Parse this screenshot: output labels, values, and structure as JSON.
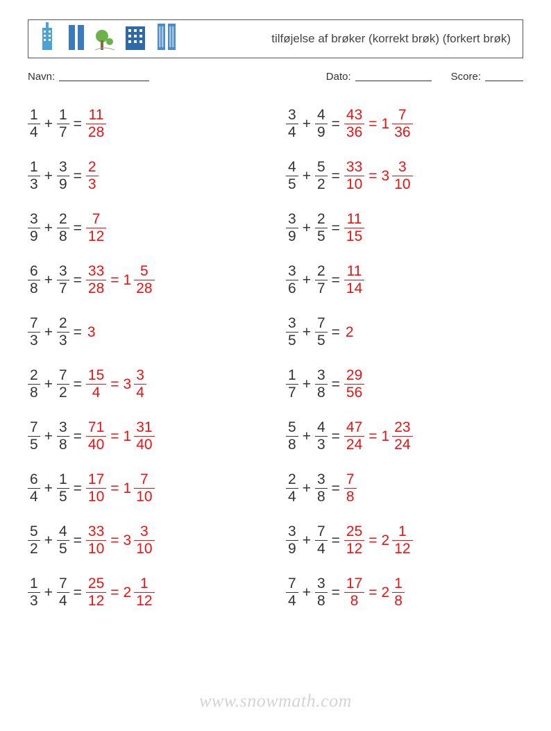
{
  "header": {
    "title": "tilføjelse af brøker (korrekt brøk) (forkert brøk)",
    "buildings": [
      {
        "c": "#4aa3d4"
      },
      {
        "c": "#3a7bbf"
      },
      {
        "c": "#6cb24a"
      },
      {
        "c": "#2e6aa8"
      },
      {
        "c": "#4a8cc7"
      }
    ]
  },
  "fields": {
    "name_label": "Navn:",
    "date_label": "Dato:",
    "score_label": "Score:"
  },
  "answer_color": "#ee1111",
  "text_color": "#333333",
  "rows_left": [
    {
      "a": {
        "n": "1",
        "d": "4"
      },
      "b": {
        "n": "1",
        "d": "7"
      },
      "ans": [
        {
          "type": "frac",
          "n": "11",
          "d": "28"
        }
      ]
    },
    {
      "a": {
        "n": "1",
        "d": "3"
      },
      "b": {
        "n": "3",
        "d": "9"
      },
      "ans": [
        {
          "type": "frac",
          "n": "2",
          "d": "3"
        }
      ]
    },
    {
      "a": {
        "n": "3",
        "d": "9"
      },
      "b": {
        "n": "2",
        "d": "8"
      },
      "ans": [
        {
          "type": "frac",
          "n": "7",
          "d": "12"
        }
      ]
    },
    {
      "a": {
        "n": "6",
        "d": "8"
      },
      "b": {
        "n": "3",
        "d": "7"
      },
      "ans": [
        {
          "type": "frac",
          "n": "33",
          "d": "28"
        },
        {
          "type": "mixed",
          "w": "1",
          "n": "5",
          "d": "28"
        }
      ]
    },
    {
      "a": {
        "n": "7",
        "d": "3"
      },
      "b": {
        "n": "2",
        "d": "3"
      },
      "ans": [
        {
          "type": "int",
          "v": "3"
        }
      ]
    },
    {
      "a": {
        "n": "2",
        "d": "8"
      },
      "b": {
        "n": "7",
        "d": "2"
      },
      "ans": [
        {
          "type": "frac",
          "n": "15",
          "d": "4"
        },
        {
          "type": "mixed",
          "w": "3",
          "n": "3",
          "d": "4"
        }
      ]
    },
    {
      "a": {
        "n": "7",
        "d": "5"
      },
      "b": {
        "n": "3",
        "d": "8"
      },
      "ans": [
        {
          "type": "frac",
          "n": "71",
          "d": "40"
        },
        {
          "type": "mixed",
          "w": "1",
          "n": "31",
          "d": "40"
        }
      ]
    },
    {
      "a": {
        "n": "6",
        "d": "4"
      },
      "b": {
        "n": "1",
        "d": "5"
      },
      "ans": [
        {
          "type": "frac",
          "n": "17",
          "d": "10"
        },
        {
          "type": "mixed",
          "w": "1",
          "n": "7",
          "d": "10"
        }
      ]
    },
    {
      "a": {
        "n": "5",
        "d": "2"
      },
      "b": {
        "n": "4",
        "d": "5"
      },
      "ans": [
        {
          "type": "frac",
          "n": "33",
          "d": "10"
        },
        {
          "type": "mixed",
          "w": "3",
          "n": "3",
          "d": "10"
        }
      ]
    },
    {
      "a": {
        "n": "1",
        "d": "3"
      },
      "b": {
        "n": "7",
        "d": "4"
      },
      "ans": [
        {
          "type": "frac",
          "n": "25",
          "d": "12"
        },
        {
          "type": "mixed",
          "w": "2",
          "n": "1",
          "d": "12"
        }
      ]
    }
  ],
  "rows_right": [
    {
      "a": {
        "n": "3",
        "d": "4"
      },
      "b": {
        "n": "4",
        "d": "9"
      },
      "ans": [
        {
          "type": "frac",
          "n": "43",
          "d": "36"
        },
        {
          "type": "mixed",
          "w": "1",
          "n": "7",
          "d": "36"
        }
      ]
    },
    {
      "a": {
        "n": "4",
        "d": "5"
      },
      "b": {
        "n": "5",
        "d": "2"
      },
      "ans": [
        {
          "type": "frac",
          "n": "33",
          "d": "10"
        },
        {
          "type": "mixed",
          "w": "3",
          "n": "3",
          "d": "10"
        }
      ]
    },
    {
      "a": {
        "n": "3",
        "d": "9"
      },
      "b": {
        "n": "2",
        "d": "5"
      },
      "ans": [
        {
          "type": "frac",
          "n": "11",
          "d": "15"
        }
      ]
    },
    {
      "a": {
        "n": "3",
        "d": "6"
      },
      "b": {
        "n": "2",
        "d": "7"
      },
      "ans": [
        {
          "type": "frac",
          "n": "11",
          "d": "14"
        }
      ]
    },
    {
      "a": {
        "n": "3",
        "d": "5"
      },
      "b": {
        "n": "7",
        "d": "5"
      },
      "ans": [
        {
          "type": "int",
          "v": "2"
        }
      ]
    },
    {
      "a": {
        "n": "1",
        "d": "7"
      },
      "b": {
        "n": "3",
        "d": "8"
      },
      "ans": [
        {
          "type": "frac",
          "n": "29",
          "d": "56"
        }
      ]
    },
    {
      "a": {
        "n": "5",
        "d": "8"
      },
      "b": {
        "n": "4",
        "d": "3"
      },
      "ans": [
        {
          "type": "frac",
          "n": "47",
          "d": "24"
        },
        {
          "type": "mixed",
          "w": "1",
          "n": "23",
          "d": "24"
        }
      ]
    },
    {
      "a": {
        "n": "2",
        "d": "4"
      },
      "b": {
        "n": "3",
        "d": "8"
      },
      "ans": [
        {
          "type": "frac",
          "n": "7",
          "d": "8"
        }
      ]
    },
    {
      "a": {
        "n": "3",
        "d": "9"
      },
      "b": {
        "n": "7",
        "d": "4"
      },
      "ans": [
        {
          "type": "frac",
          "n": "25",
          "d": "12"
        },
        {
          "type": "mixed",
          "w": "2",
          "n": "1",
          "d": "12"
        }
      ]
    },
    {
      "a": {
        "n": "7",
        "d": "4"
      },
      "b": {
        "n": "3",
        "d": "8"
      },
      "ans": [
        {
          "type": "frac",
          "n": "17",
          "d": "8"
        },
        {
          "type": "mixed",
          "w": "2",
          "n": "1",
          "d": "8"
        }
      ]
    }
  ],
  "watermark": "www.snowmath.com"
}
